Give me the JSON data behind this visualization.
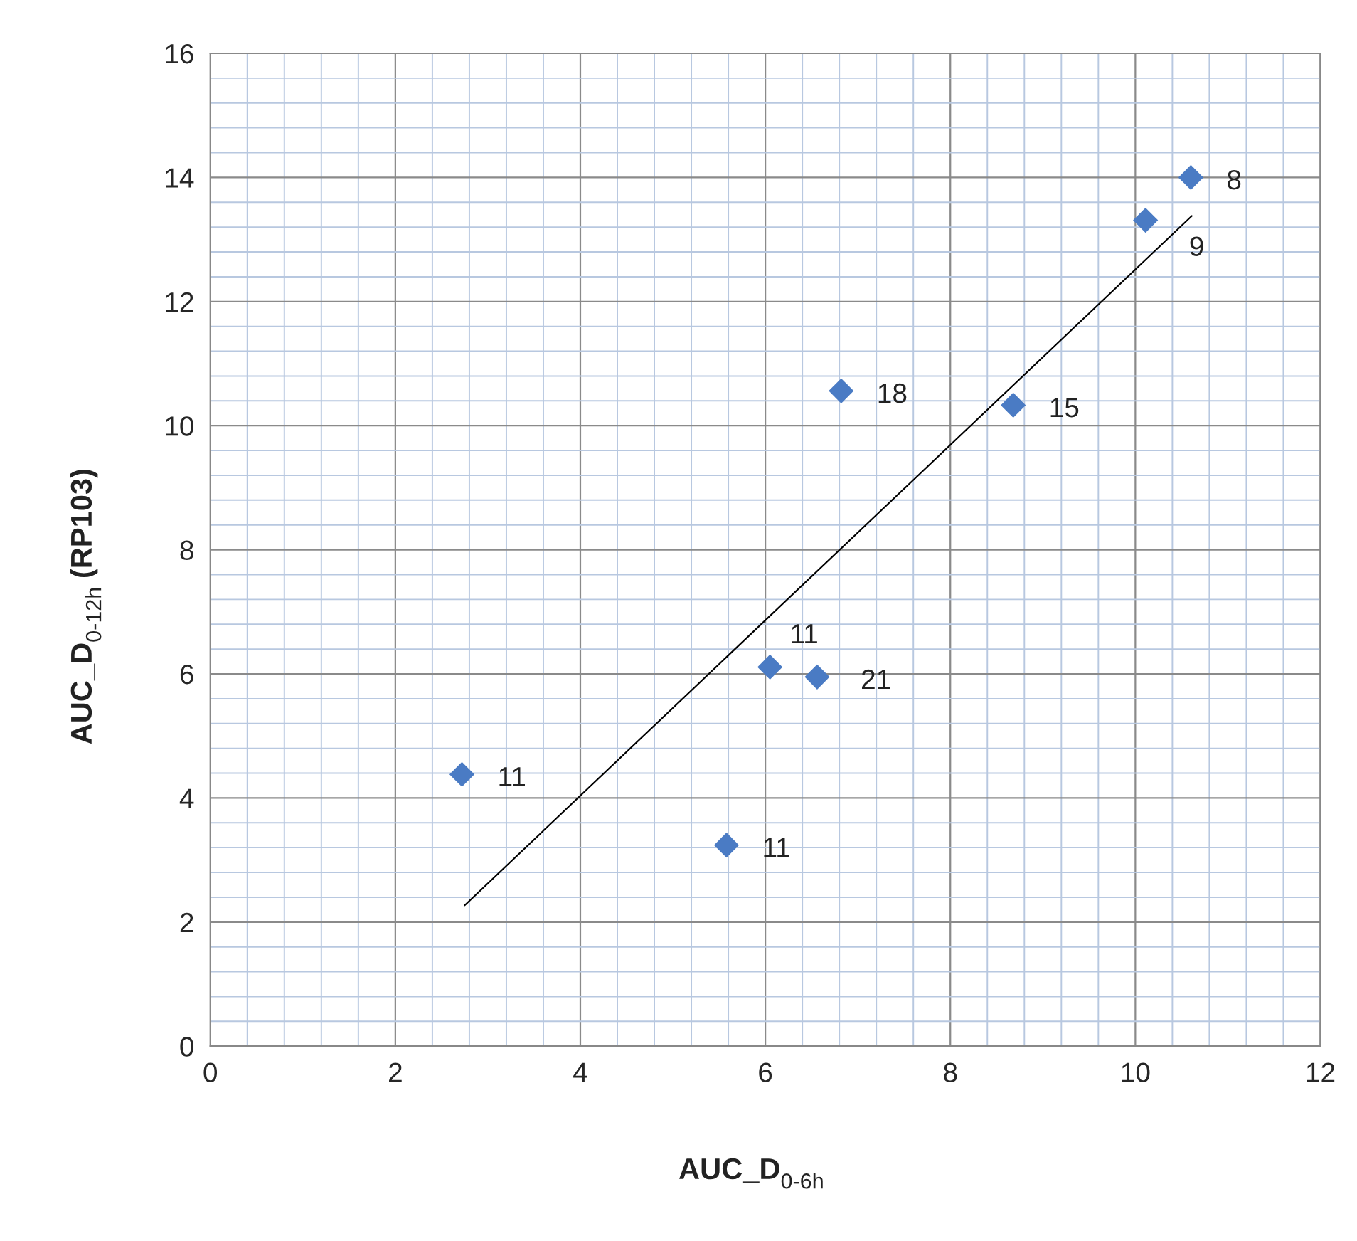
{
  "chart_data": {
    "type": "scatter",
    "xlabel": "AUC_D$_{0-6h}$",
    "ylabel": "AUC_D$_{0-12h}$ (RP103)",
    "x": [
      2.72,
      5.58,
      6.05,
      6.56,
      6.82,
      8.68,
      10.11,
      10.6
    ],
    "series": [
      {
        "color": "#4a7bc4",
        "marker": "diamond",
        "values": [
          4.38,
          3.24,
          6.11,
          5.95,
          10.56,
          10.33,
          13.31,
          14.0
        ]
      },
      {
        "type": "line",
        "color": "#000000",
        "x": [
          2.75,
          10.61
        ],
        "values": [
          2.27,
          13.38
        ],
        "marker": "none",
        "line_style": "solid"
      }
    ],
    "annotations": [
      {
        "text": "11",
        "x": 2.72,
        "y": 4.38
      },
      {
        "text": "11",
        "x": 5.58,
        "y": 3.24
      },
      {
        "text": "11",
        "x": 6.05,
        "y": 6.11
      },
      {
        "text": "21",
        "x": 6.56,
        "y": 5.95
      },
      {
        "text": "18",
        "x": 6.82,
        "y": 10.56
      },
      {
        "text": "15",
        "x": 8.68,
        "y": 10.33
      },
      {
        "text": "9",
        "x": 10.11,
        "y": 13.31
      },
      {
        "text": "8",
        "x": 10.6,
        "y": 14.0
      }
    ],
    "xlim": [
      0,
      12
    ],
    "xticks": [
      0,
      2,
      4,
      6,
      8,
      10,
      12
    ],
    "ylim": [
      0,
      16
    ],
    "yticks": [
      0,
      2,
      4,
      6,
      8,
      10,
      12,
      14,
      16
    ],
    "grid": true,
    "legend": false
  }
}
